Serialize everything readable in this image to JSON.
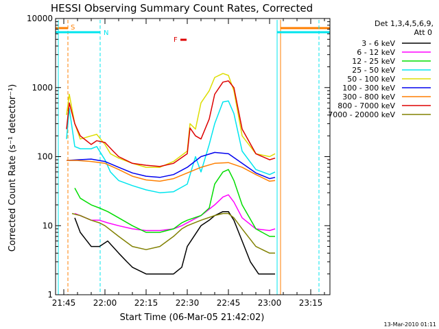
{
  "chart_data": {
    "type": "line",
    "title": "HESSI Observing Summary Count Rates, Corrected",
    "xlabel": "Start Time (06-Mar-05 21:42:02)",
    "ylabel": "Corrected Count Rate (s⁻¹ detector⁻¹)",
    "yscale": "log",
    "ylim": [
      1,
      10000
    ],
    "xlim": [
      "21:42",
      "23:22"
    ],
    "xticks": [
      "21:45",
      "22:00",
      "22:15",
      "22:30",
      "22:45",
      "23:00",
      "23:15"
    ],
    "yticks": [
      "1",
      "10",
      "100",
      "1000",
      "10000"
    ],
    "grid": false,
    "legend_position": "right",
    "legend_header": [
      "Det 1,3,4,5,6,9,",
      "Att 0"
    ],
    "footer": "13-Mar-2010 01:11",
    "annotations": [
      {
        "label": "S",
        "color": "#ff7f00"
      },
      {
        "label": "N",
        "color": "#00e5ee"
      },
      {
        "label": "F",
        "color": "#dd0000"
      }
    ],
    "series": [
      {
        "name": "3 - 6 keV",
        "color": "#000000",
        "x": [
          "21:49",
          "21:51",
          "21:55",
          "21:58",
          "22:01",
          "22:05",
          "22:08",
          "22:10",
          "22:15",
          "22:20",
          "22:25",
          "22:28",
          "22:30",
          "22:35",
          "22:38",
          "22:40",
          "22:43",
          "22:45",
          "22:47",
          "22:50",
          "22:53",
          "22:56",
          "22:59",
          "23:02"
        ],
        "y": [
          13,
          8,
          5,
          5,
          6,
          4,
          3,
          2.5,
          2,
          2,
          2,
          2.5,
          5,
          10,
          12,
          14,
          16,
          16,
          12,
          6,
          3,
          2,
          2,
          2
        ]
      },
      {
        "name": "6 - 12 keV",
        "color": "#ff00ff",
        "x": [
          "21:49",
          "21:51",
          "21:55",
          "21:58",
          "22:01",
          "22:05",
          "22:10",
          "22:15",
          "22:20",
          "22:25",
          "22:28",
          "22:30",
          "22:35",
          "22:40",
          "22:43",
          "22:45",
          "22:47",
          "22:50",
          "22:55",
          "23:00",
          "23:02"
        ],
        "y": [
          15,
          14,
          12,
          12,
          11,
          10,
          9,
          8.5,
          8.5,
          9,
          10,
          11,
          14,
          20,
          26,
          28,
          22,
          13,
          9,
          8.5,
          9
        ]
      },
      {
        "name": "12 - 25 keV",
        "color": "#00dd00",
        "x": [
          "21:49",
          "21:51",
          "21:55",
          "21:58",
          "22:01",
          "22:05",
          "22:10",
          "22:15",
          "22:20",
          "22:25",
          "22:28",
          "22:30",
          "22:35",
          "22:38",
          "22:40",
          "22:43",
          "22:45",
          "22:47",
          "22:50",
          "22:55",
          "23:00",
          "23:02"
        ],
        "y": [
          35,
          25,
          20,
          18,
          16,
          13,
          10,
          8,
          8,
          9,
          11,
          12,
          14,
          18,
          40,
          60,
          65,
          45,
          20,
          9,
          7,
          7
        ]
      },
      {
        "name": "25 - 50 keV",
        "color": "#00e5ee",
        "x": [
          "21:46",
          "21:47",
          "21:49",
          "21:51",
          "21:55",
          "21:57",
          "22:00",
          "22:02",
          "22:05",
          "22:10",
          "22:15",
          "22:20",
          "22:25",
          "22:30",
          "22:33",
          "22:35",
          "22:38",
          "22:40",
          "22:43",
          "22:45",
          "22:47",
          "22:50",
          "22:55",
          "23:00",
          "23:02"
        ],
        "y": [
          180,
          500,
          140,
          130,
          130,
          140,
          90,
          60,
          45,
          38,
          33,
          30,
          31,
          40,
          100,
          60,
          150,
          300,
          620,
          640,
          420,
          120,
          65,
          55,
          60
        ]
      },
      {
        "name": "50 - 100 keV",
        "color": "#dddd00",
        "x": [
          "21:46",
          "21:47",
          "21:49",
          "21:51",
          "21:55",
          "21:57",
          "22:00",
          "22:02",
          "22:05",
          "22:10",
          "22:15",
          "22:20",
          "22:25",
          "22:30",
          "22:31",
          "22:33",
          "22:35",
          "22:38",
          "22:40",
          "22:43",
          "22:45",
          "22:47",
          "22:50",
          "22:55",
          "23:00",
          "23:02"
        ],
        "y": [
          400,
          800,
          300,
          180,
          200,
          210,
          150,
          110,
          95,
          80,
          70,
          70,
          85,
          120,
          300,
          250,
          600,
          900,
          1400,
          1600,
          1500,
          900,
          200,
          110,
          100,
          110
        ]
      },
      {
        "name": "100 - 300 keV",
        "color": "#0000ee",
        "x": [
          "21:46",
          "21:50",
          "21:55",
          "22:00",
          "22:05",
          "22:10",
          "22:15",
          "22:20",
          "22:25",
          "22:30",
          "22:35",
          "22:40",
          "22:45",
          "22:50",
          "22:55",
          "23:00",
          "23:02"
        ],
        "y": [
          88,
          90,
          92,
          85,
          70,
          58,
          52,
          50,
          55,
          70,
          100,
          115,
          110,
          80,
          58,
          48,
          50
        ]
      },
      {
        "name": "300 - 800 keV",
        "color": "#ff7f00",
        "x": [
          "21:46",
          "21:50",
          "21:55",
          "22:00",
          "22:05",
          "22:10",
          "22:15",
          "22:20",
          "22:25",
          "22:30",
          "22:35",
          "22:40",
          "22:45",
          "22:50",
          "22:55",
          "23:00",
          "23:02"
        ],
        "y": [
          88,
          88,
          85,
          80,
          65,
          52,
          46,
          44,
          48,
          58,
          70,
          80,
          82,
          70,
          55,
          44,
          45
        ]
      },
      {
        "name": "800 - 7000 keV",
        "color": "#dd0000",
        "x": [
          "21:46",
          "21:47",
          "21:49",
          "21:51",
          "21:55",
          "21:57",
          "22:00",
          "22:03",
          "22:05",
          "22:10",
          "22:15",
          "22:20",
          "22:25",
          "22:30",
          "22:31",
          "22:33",
          "22:35",
          "22:38",
          "22:40",
          "22:43",
          "22:45",
          "22:47",
          "22:50",
          "22:55",
          "23:00",
          "23:02"
        ],
        "y": [
          250,
          600,
          300,
          200,
          150,
          170,
          160,
          120,
          100,
          80,
          75,
          72,
          80,
          110,
          260,
          200,
          180,
          350,
          800,
          1200,
          1250,
          1000,
          250,
          110,
          90,
          95
        ]
      },
      {
        "name": "7000 - 20000 keV",
        "color": "#808000",
        "x": [
          "21:48",
          "21:51",
          "21:55",
          "21:58",
          "22:00",
          "22:05",
          "22:10",
          "22:15",
          "22:20",
          "22:25",
          "22:28",
          "22:30",
          "22:35",
          "22:40",
          "22:43",
          "22:45",
          "22:47",
          "22:50",
          "22:55",
          "23:00",
          "23:02"
        ],
        "y": [
          15,
          14,
          12,
          11,
          10,
          7,
          5,
          4.5,
          5,
          7,
          9,
          10,
          12,
          14,
          15,
          15,
          13,
          9,
          5,
          4,
          4
        ]
      }
    ]
  }
}
